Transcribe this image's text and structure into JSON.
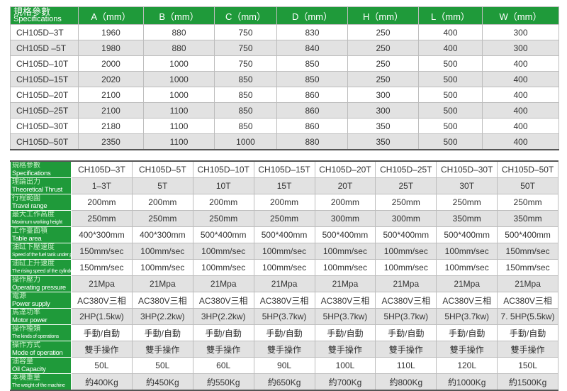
{
  "dimensions_table": {
    "header_zh": "規格參數",
    "header_en": "Specifications",
    "columns": [
      "A（mm）",
      "B（mm）",
      "C（mm）",
      "D（mm）",
      "H（mm）",
      "L（mm）",
      "W（mm）"
    ],
    "rows": [
      {
        "model": "CH105D–3T",
        "values": [
          "1960",
          "880",
          "750",
          "830",
          "250",
          "400",
          "300"
        ]
      },
      {
        "model": "CH105D –5T",
        "values": [
          "1980",
          "880",
          "750",
          "840",
          "250",
          "400",
          "300"
        ]
      },
      {
        "model": "CH105D–10T",
        "values": [
          "2000",
          "1000",
          "750",
          "850",
          "250",
          "500",
          "400"
        ]
      },
      {
        "model": "CH105D–15T",
        "values": [
          "2020",
          "1000",
          "850",
          "850",
          "250",
          "500",
          "400"
        ]
      },
      {
        "model": "CH105D–20T",
        "values": [
          "2100",
          "1000",
          "850",
          "860",
          "300",
          "500",
          "400"
        ]
      },
      {
        "model": "CH105D–25T",
        "values": [
          "2100",
          "1100",
          "850",
          "860",
          "300",
          "500",
          "400"
        ]
      },
      {
        "model": "CH105D–30T",
        "values": [
          "2180",
          "1100",
          "850",
          "860",
          "350",
          "500",
          "400"
        ]
      },
      {
        "model": "CH105D–50T",
        "values": [
          "2350",
          "1100",
          "1000",
          "880",
          "350",
          "500",
          "400"
        ]
      }
    ]
  },
  "specs_table": {
    "rows": [
      {
        "zh": "規格參數",
        "en": "Specifications",
        "values": [
          "CH105D–3T",
          "CH105D–5T",
          "CH105D–10T",
          "CH105D–15T",
          "CH105D–20T",
          "CH105D–25T",
          "CH105D–30T",
          "CH105D–50T"
        ]
      },
      {
        "zh": "理論出力",
        "en": "Theoretical Thrust",
        "values": [
          "1–3T",
          "5T",
          "10T",
          "15T",
          "20T",
          "25T",
          "30T",
          "50T"
        ]
      },
      {
        "zh": "行程範圍",
        "en": "Travel range",
        "values": [
          "200mm",
          "200mm",
          "200mm",
          "200mm",
          "200mm",
          "250mm",
          "250mm",
          "250mm"
        ]
      },
      {
        "zh": "最大工作高度",
        "en": "Maximum working height",
        "values": [
          "250mm",
          "250mm",
          "250mm",
          "250mm",
          "300mm",
          "300mm",
          "350mm",
          "350mm"
        ]
      },
      {
        "zh": "工作臺面積",
        "en": "Table area",
        "values": [
          "400*300mm",
          "400*300mm",
          "500*400mm",
          "500*400mm",
          "500*400mm",
          "500*400mm",
          "500*400mm",
          "500*400mm"
        ]
      },
      {
        "zh": "油缸下壓速度",
        "en": "Speed of the fuel tank under pressure",
        "values": [
          "150mm/sec",
          "100mm/sec",
          "100mm/sec",
          "100mm/sec",
          "100mm/sec",
          "100mm/sec",
          "100mm/sec",
          "150mm/sec"
        ]
      },
      {
        "zh": "油缸上升速度",
        "en": "The rising speed of the cylinder",
        "values": [
          "150mm/sec",
          "100mm/sec",
          "100mm/sec",
          "100mm/sec",
          "100mm/sec",
          "100mm/sec",
          "100mm/sec",
          "150mm/sec"
        ]
      },
      {
        "zh": "操作壓力",
        "en": "Operating pressure",
        "values": [
          "21Mpa",
          "21Mpa",
          "21Mpa",
          "21Mpa",
          "21Mpa",
          "21Mpa",
          "21Mpa",
          "21Mpa"
        ]
      },
      {
        "zh": "電源",
        "en": "Power supply",
        "values": [
          "AC380V三相",
          "AC380V三相",
          "AC380V三相",
          "AC380V三相",
          "AC380V三相",
          "AC380V三相",
          "AC380V三相",
          "AC380V三相"
        ]
      },
      {
        "zh": "馬達功率",
        "en": "Motor power",
        "values": [
          "2HP(1.5kw)",
          "3HP(2.2kw)",
          "3HP(2.2kw)",
          "5HP(3.7kw)",
          "5HP(3.7kw)",
          "5HP(3.7kw)",
          "5HP(3.7kw)",
          "7. 5HP(5.5kw)"
        ]
      },
      {
        "zh": "操作種類",
        "en": "The kinds of operations",
        "values": [
          "手動/自動",
          "手動/自動",
          "手動/自動",
          "手動/自動",
          "手動/自動",
          "手動/自動",
          "手動/自動",
          "手動/自動"
        ]
      },
      {
        "zh": "操作方式",
        "en": "Mode of operation",
        "values": [
          "雙手操作",
          "雙手操作",
          "雙手操作",
          "雙手操作",
          "雙手操作",
          "雙手操作",
          "雙手操作",
          "雙手操作"
        ]
      },
      {
        "zh": "油容量",
        "en": "Oil Capacity",
        "values": [
          "50L",
          "50L",
          "60L",
          "90L",
          "100L",
          "110L",
          "120L",
          "150L"
        ]
      },
      {
        "zh": "本機重量",
        "en": "The weight of the machine",
        "values": [
          "約400Kg",
          "約450Kg",
          "約550Kg",
          "約650Kg",
          "約700Kg",
          "約800Kg",
          "約1000Kg",
          "約1500Kg"
        ]
      }
    ]
  },
  "colors": {
    "header_green": "#1f9a3a",
    "row_alt": "#e2e2e2"
  }
}
